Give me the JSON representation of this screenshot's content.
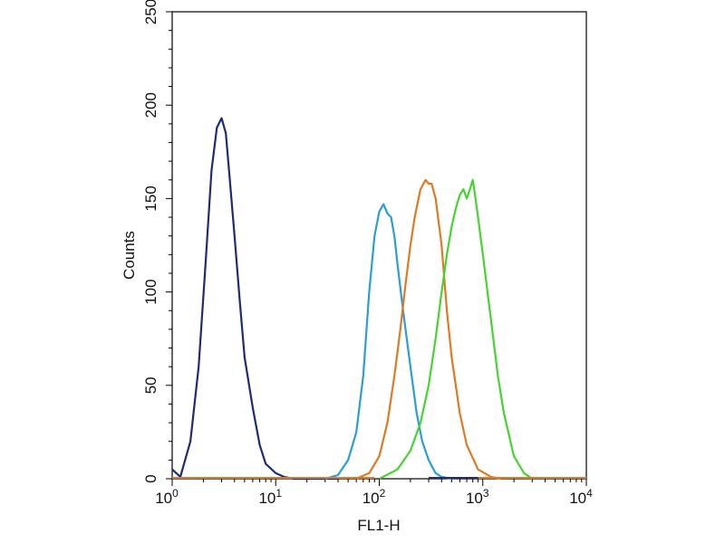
{
  "chart_data": {
    "type": "line",
    "xlabel": "FL1-H",
    "ylabel": "Counts",
    "x_scale": "log",
    "xlim": [
      1,
      10000
    ],
    "ylim": [
      0,
      250
    ],
    "grid": false,
    "y_ticks": [
      {
        "value": 0,
        "label": "0"
      },
      {
        "value": 50,
        "label": "50"
      },
      {
        "value": 100,
        "label": "100"
      },
      {
        "value": 150,
        "label": "150"
      },
      {
        "value": 200,
        "label": "200"
      },
      {
        "value": 250,
        "label": "250"
      }
    ],
    "x_ticks": [
      {
        "value": 1,
        "base": "10",
        "exp": "0"
      },
      {
        "value": 10,
        "base": "10",
        "exp": "1"
      },
      {
        "value": 100,
        "base": "10",
        "exp": "2"
      },
      {
        "value": 1000,
        "base": "10",
        "exp": "3"
      },
      {
        "value": 10000,
        "base": "10",
        "exp": "4"
      }
    ],
    "series": [
      {
        "color": "#1f2a7a",
        "x": [
          1.0,
          1.2,
          1.5,
          1.8,
          2.1,
          2.4,
          2.7,
          3.0,
          3.3,
          3.6,
          4.0,
          4.5,
          5.0,
          6.0,
          7.0,
          8.0,
          10,
          12,
          15,
          20,
          30,
          40
        ],
        "y": [
          5,
          1,
          20,
          60,
          115,
          165,
          188,
          193,
          185,
          160,
          130,
          95,
          65,
          38,
          18,
          8,
          3,
          1,
          0,
          0,
          0,
          0
        ]
      },
      {
        "color": "#2a9ed6",
        "x": [
          30,
          40,
          50,
          60,
          70,
          80,
          90,
          100,
          110,
          120,
          130,
          140,
          150,
          170,
          200,
          230,
          260,
          300,
          350,
          400,
          500
        ],
        "y": [
          0,
          2,
          10,
          25,
          55,
          100,
          130,
          143,
          147,
          142,
          140,
          130,
          115,
          90,
          60,
          35,
          20,
          10,
          3,
          1,
          0
        ]
      },
      {
        "color": "#e07a22",
        "x": [
          60,
          80,
          100,
          120,
          140,
          160,
          180,
          200,
          220,
          250,
          280,
          300,
          320,
          350,
          400,
          450,
          500,
          600,
          700,
          900,
          1200,
          1500
        ],
        "y": [
          0,
          3,
          12,
          30,
          55,
          80,
          105,
          125,
          140,
          155,
          160,
          158,
          158,
          150,
          125,
          90,
          65,
          35,
          18,
          5,
          1,
          0
        ]
      },
      {
        "color": "#46d42e",
        "x": [
          100,
          150,
          200,
          250,
          300,
          350,
          400,
          450,
          500,
          550,
          600,
          650,
          700,
          750,
          800,
          850,
          900,
          1000,
          1200,
          1400,
          1600,
          2000,
          2500,
          3000
        ],
        "y": [
          0,
          5,
          15,
          30,
          50,
          75,
          100,
          120,
          135,
          145,
          152,
          155,
          150,
          155,
          160,
          150,
          140,
          120,
          85,
          55,
          35,
          12,
          3,
          0
        ]
      }
    ]
  }
}
